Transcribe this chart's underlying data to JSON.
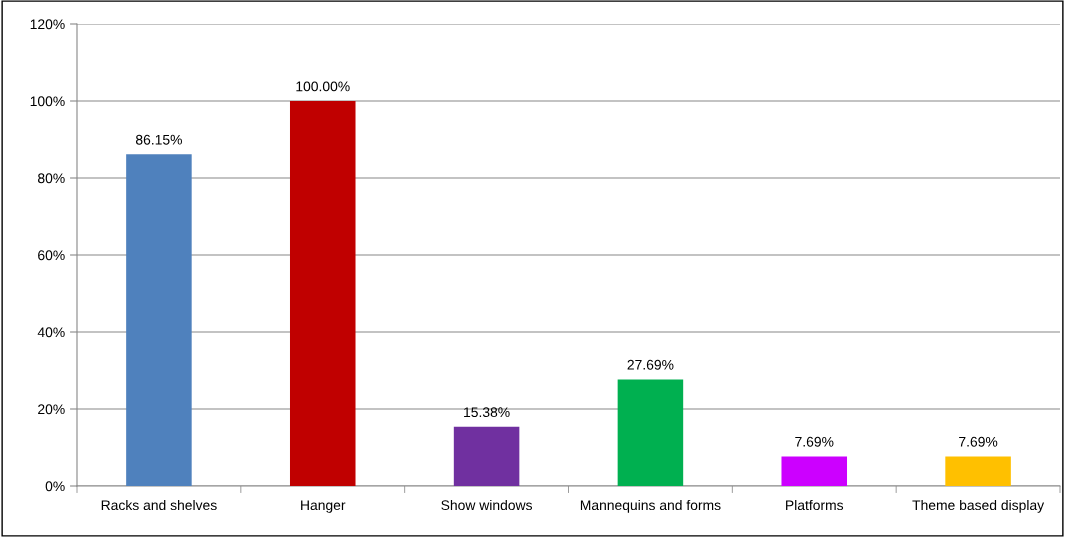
{
  "chart_data": {
    "type": "bar",
    "categories": [
      "Racks and shelves",
      "Hanger",
      "Show windows",
      "Mannequins and forms",
      "Platforms",
      "Theme based display"
    ],
    "values": [
      86.15,
      100.0,
      15.38,
      27.69,
      7.69,
      7.69
    ],
    "colors": [
      "#4f81bd",
      "#c00000",
      "#7030a0",
      "#00b050",
      "#cc00ff",
      "#ffc000"
    ],
    "value_labels": [
      "86.15%",
      "100.00%",
      "15.38%",
      "27.69%",
      "7.69%",
      "7.69%"
    ],
    "ylim": [
      0,
      120
    ],
    "yticks": [
      {
        "value": 0,
        "label": "0%"
      },
      {
        "value": 20,
        "label": "20%"
      },
      {
        "value": 40,
        "label": "40%"
      },
      {
        "value": 60,
        "label": "60%"
      },
      {
        "value": 80,
        "label": "80%"
      },
      {
        "value": 100,
        "label": "100%"
      },
      {
        "value": 120,
        "label": "120%"
      }
    ],
    "grid": "y"
  }
}
